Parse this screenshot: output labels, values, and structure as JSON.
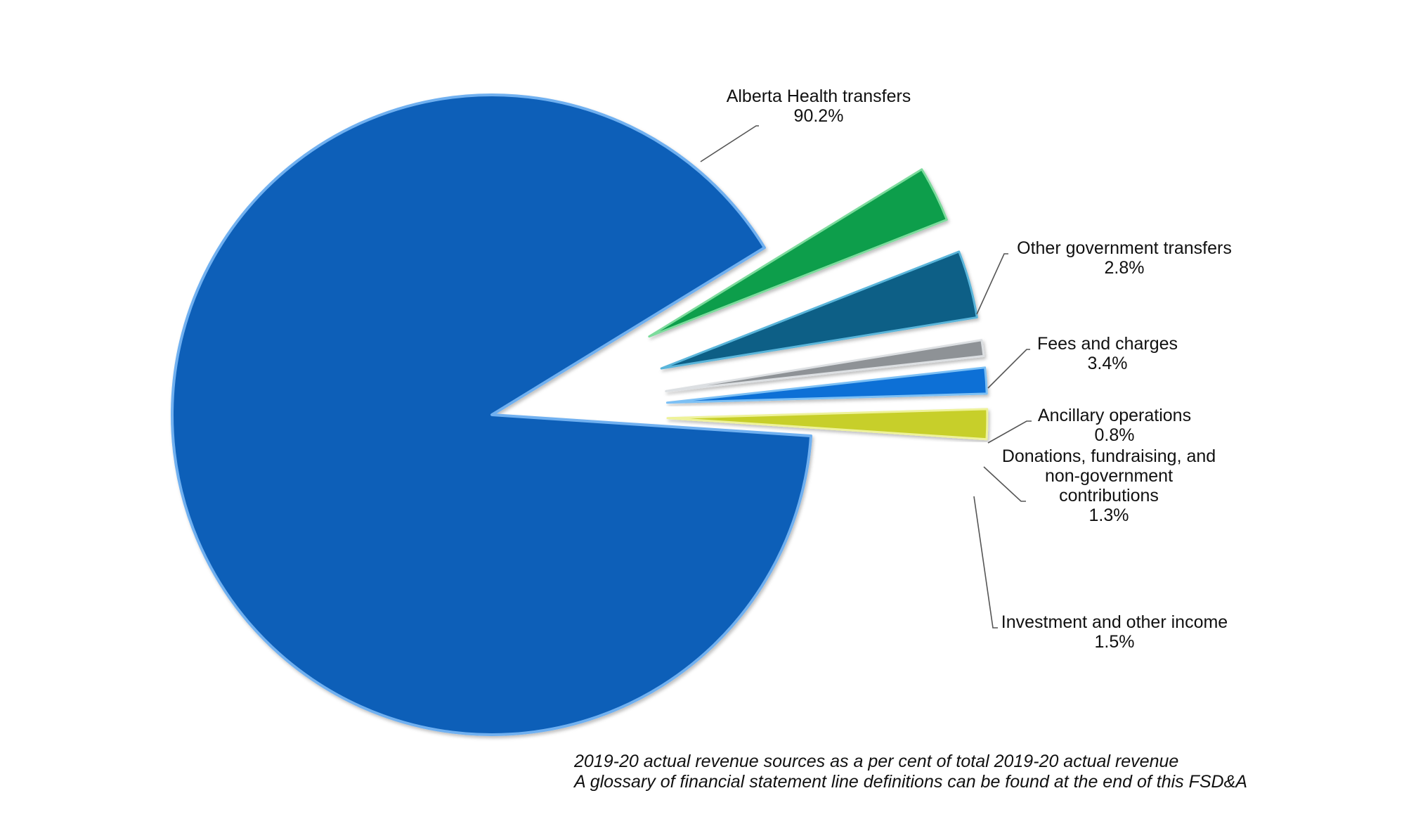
{
  "chart_data": {
    "type": "pie",
    "title": "",
    "slices": [
      {
        "label": "Alberta Health transfers",
        "value": 90.2,
        "value_label": "90.2%",
        "color": "#0B5FB8",
        "edge": "#6FB0F0"
      },
      {
        "label": "Other government transfers",
        "value": 2.8,
        "value_label": "2.8%",
        "color": "#0C9E4C",
        "edge": "#7CDB9C"
      },
      {
        "label": "Fees and charges",
        "value": 3.4,
        "value_label": "3.4%",
        "color": "#0A5E86",
        "edge": "#5AB5DA"
      },
      {
        "label": "Ancillary operations",
        "value": 0.8,
        "value_label": "0.8%",
        "color": "#8E9296",
        "edge": "#DCDFE2"
      },
      {
        "label": "Donations, fundraising, and non-government contributions",
        "value": 1.3,
        "value_label": "1.3%",
        "color": "#1070D6",
        "edge": "#7CC0F5"
      },
      {
        "label": "Investment and other income",
        "value": 1.5,
        "value_label": "1.5%",
        "color": "#C7CF2A",
        "edge": "#EEF29A"
      }
    ],
    "label_lines": [
      [
        "Alberta Health transfers"
      ],
      [
        "Other government transfers"
      ],
      [
        "Fees and charges"
      ],
      [
        "Ancillary operations"
      ],
      [
        "Donations, fundraising, and",
        "non-government",
        "contributions"
      ],
      [
        "Investment and other income"
      ]
    ],
    "footnotes": [
      "2019-20 actual revenue sources as a per cent of total 2019-20 actual revenue",
      "A glossary of financial statement line definitions can be found at the end of this FSD&A"
    ]
  }
}
